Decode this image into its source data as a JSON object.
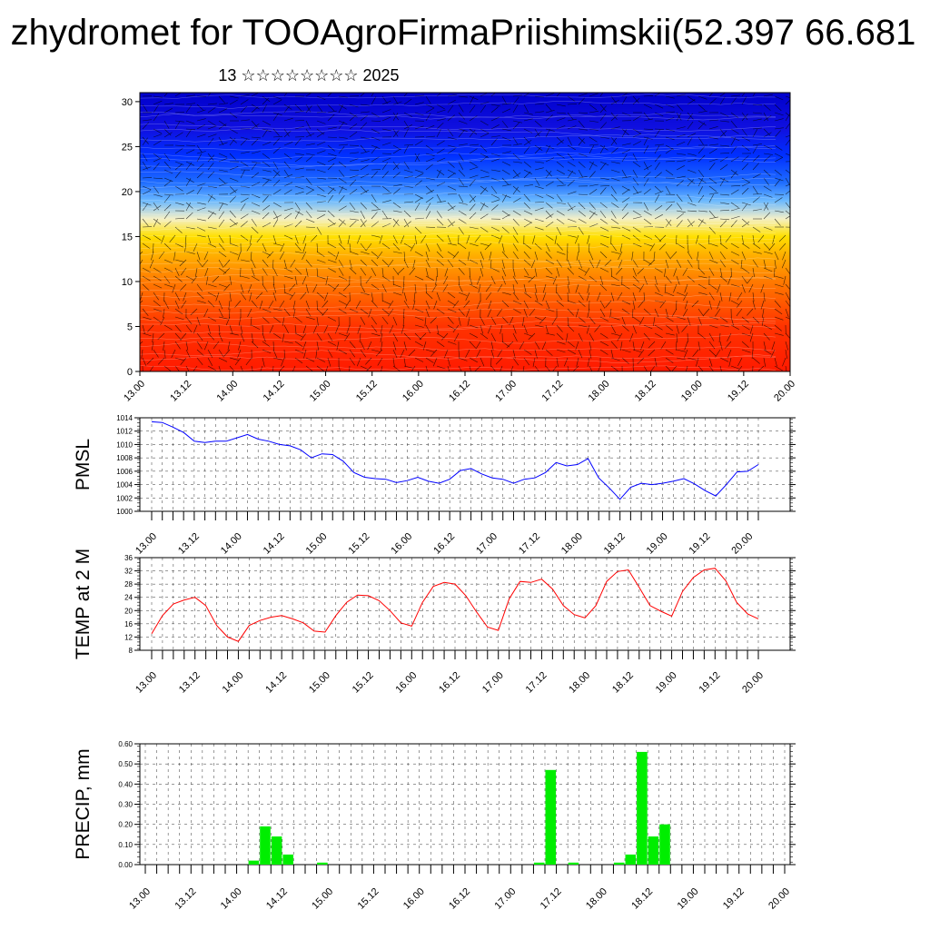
{
  "header": {
    "title": "zhydromet for TOOAgroFirmaPriishimskii(52.397 66.681",
    "subtitle": "13 ☆☆☆☆☆☆☆☆ 2025"
  },
  "colors": {
    "pmsl_line": "#0000ff",
    "temp_line": "#ff0000",
    "precip_bar": "#00ee00",
    "profile_high": "#0000cc",
    "profile_low": "#ff1a00"
  },
  "time_labels": [
    "13.00",
    "13.12",
    "14.00",
    "14.12",
    "15.00",
    "15.12",
    "16.00",
    "16.12",
    "17.00",
    "17.12",
    "18.00",
    "18.12",
    "19.00",
    "19.12",
    "20.00"
  ],
  "chart_data": [
    {
      "type": "heatmap",
      "panel": "profile",
      "ylim": [
        0,
        31
      ],
      "yticks": [
        0,
        5,
        10,
        15,
        20,
        25,
        30
      ],
      "x_labels": [
        "13.00",
        "13.12",
        "14.00",
        "14.12",
        "15.00",
        "15.12",
        "16.00",
        "16.12",
        "17.00",
        "17.12",
        "18.00",
        "18.12",
        "19.00",
        "19.12",
        "20.00"
      ],
      "color_bands": [
        {
          "y": 0,
          "color": "#ff1a00"
        },
        {
          "y": 5,
          "color": "#ff3300"
        },
        {
          "y": 10,
          "color": "#ff7a00"
        },
        {
          "y": 13,
          "color": "#ffb000"
        },
        {
          "y": 15,
          "color": "#ffe000"
        },
        {
          "y": 17,
          "color": "#f4f0c8"
        },
        {
          "y": 19,
          "color": "#6ab8ff"
        },
        {
          "y": 21,
          "color": "#1f6dff"
        },
        {
          "y": 24,
          "color": "#0030ff"
        },
        {
          "y": 27,
          "color": "#1010e0"
        },
        {
          "y": 31,
          "color": "#0000cc"
        }
      ]
    },
    {
      "type": "line",
      "panel": "pmsl",
      "ylabel": "PMSL",
      "ylim": [
        1000,
        1014
      ],
      "yticks": [
        1000,
        1002,
        1004,
        1006,
        1008,
        1010,
        1012,
        1014
      ],
      "x_labels": [
        "13.00",
        "13.12",
        "14.00",
        "14.12",
        "15.00",
        "15.12",
        "16.00",
        "16.12",
        "17.00",
        "17.12",
        "18.00",
        "18.12",
        "19.00",
        "19.12",
        "20.00"
      ],
      "series": [
        {
          "values": [
            1013.4,
            1013.3,
            1012.6,
            1011.8,
            1010.5,
            1010.3,
            1010.5,
            1010.5,
            1011.0,
            1011.5,
            1010.8,
            1010.5,
            1010.0,
            1009.8,
            1009.2,
            1008.0,
            1008.6,
            1008.5,
            1007.5,
            1005.8,
            1005.1,
            1004.9,
            1004.8,
            1004.3,
            1004.6,
            1005.1,
            1004.5,
            1004.2,
            1004.8,
            1006.1,
            1006.4,
            1005.6,
            1005.0,
            1004.8,
            1004.2,
            1004.8,
            1005.0,
            1005.8,
            1007.3,
            1006.8,
            1007.0,
            1007.9,
            1005.0,
            1003.5,
            1001.8,
            1003.6,
            1004.2,
            1004.0,
            1004.2,
            1004.5,
            1004.9,
            1004.1,
            1003.1,
            1002.3,
            1004.0,
            1005.9,
            1006.0,
            1007.0
          ]
        }
      ]
    },
    {
      "type": "line",
      "panel": "temp",
      "ylabel": "TEMP at 2 M",
      "ylim": [
        8,
        36
      ],
      "yticks": [
        8,
        12,
        16,
        20,
        24,
        28,
        32,
        36
      ],
      "x_labels": [
        "13.00",
        "13.12",
        "14.00",
        "14.12",
        "15.00",
        "15.12",
        "16.00",
        "16.12",
        "17.00",
        "17.12",
        "18.00",
        "18.12",
        "19.00",
        "19.12",
        "20.00"
      ],
      "series": [
        {
          "values": [
            13.0,
            18.5,
            22.0,
            23.2,
            24.0,
            21.5,
            15.5,
            12.0,
            10.7,
            15.5,
            17.0,
            18.0,
            18.5,
            17.5,
            16.3,
            13.8,
            13.5,
            18.5,
            22.5,
            24.7,
            24.5,
            23.0,
            20.0,
            16.3,
            15.3,
            22.5,
            27.3,
            28.5,
            28.0,
            24.5,
            19.5,
            15.0,
            14.0,
            23.5,
            28.8,
            28.5,
            29.5,
            26.5,
            21.5,
            18.8,
            17.8,
            21.5,
            28.8,
            31.8,
            32.3,
            27.0,
            21.5,
            19.8,
            18.3,
            25.8,
            30.0,
            32.3,
            32.8,
            29.0,
            22.5,
            19.0,
            17.5
          ]
        }
      ]
    },
    {
      "type": "bar",
      "panel": "precip",
      "ylabel": "PRECIP, mm",
      "ylim": [
        0,
        0.6
      ],
      "yticks": [
        "0.00",
        "0.10",
        "0.20",
        "0.30",
        "0.40",
        "0.50",
        "0.60"
      ],
      "x_labels": [
        "13.00",
        "13.12",
        "14.00",
        "14.12",
        "15.00",
        "15.12",
        "16.00",
        "16.12",
        "17.00",
        "17.12",
        "18.00",
        "18.12",
        "19.00",
        "19.12",
        "20.00"
      ],
      "values": [
        0,
        0,
        0,
        0,
        0,
        0,
        0,
        0,
        0,
        0.02,
        0.19,
        0.14,
        0.05,
        0,
        0,
        0.01,
        0,
        0,
        0,
        0,
        0,
        0,
        0,
        0,
        0,
        0,
        0,
        0,
        0,
        0,
        0,
        0,
        0,
        0,
        0.01,
        0.47,
        0,
        0.01,
        0,
        0,
        0,
        0.01,
        0.05,
        0.56,
        0.14,
        0.2,
        0,
        0,
        0,
        0,
        0,
        0,
        0,
        0,
        0,
        0,
        0
      ]
    }
  ]
}
